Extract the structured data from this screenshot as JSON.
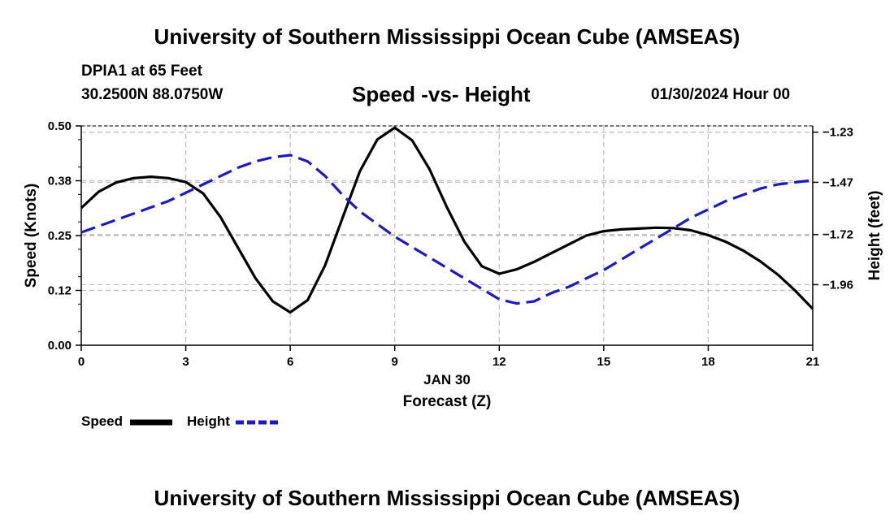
{
  "header": {
    "title": "University of Southern Mississippi Ocean Cube (AMSEAS)",
    "station": "DPIA1 at 65 Feet",
    "coordinates": "30.2500N  88.0750W",
    "subtitle": "Speed -vs- Height",
    "datetime": "01/30/2024 Hour 00"
  },
  "footer": {
    "title": "University of Southern Mississippi Ocean Cube (AMSEAS)"
  },
  "legend": {
    "speed_label": "Speed",
    "height_label": "Height"
  },
  "colors": {
    "speed": "#000000",
    "height": "#1a1acc",
    "grid": "#bbbbbb"
  },
  "chart_data": {
    "type": "line",
    "title": "Speed -vs- Height",
    "xlabel": "Forecast (Z)",
    "xlabel_date": "JAN 30",
    "ylabel": "Speed (Knots)",
    "y2label": "Height (feet)",
    "xlim": [
      0,
      21
    ],
    "ylim": [
      0,
      0.5
    ],
    "y2lim": [
      -2.25,
      -1.2
    ],
    "x_ticks": [
      0,
      3,
      6,
      9,
      12,
      15,
      18,
      21
    ],
    "x_tick_labels": [
      "0",
      "3",
      "6",
      "9",
      "12",
      "15",
      "18",
      "21"
    ],
    "y_ticks": [
      0,
      0.125,
      0.25,
      0.375,
      0.5
    ],
    "y_tick_labels": [
      "0.00",
      "0.12",
      "0.25",
      "0.38",
      "0.50"
    ],
    "y2_ticks": [
      -1.23,
      -1.47,
      -1.72,
      -1.96
    ],
    "y2_tick_labels": [
      "-1.23",
      "-1.47",
      "-1.72",
      "-1.96"
    ],
    "grid": true,
    "series": [
      {
        "name": "Speed",
        "axis": "left",
        "style": "solid",
        "x": [
          0,
          0.5,
          1,
          1.5,
          2,
          2.5,
          3,
          3.5,
          4,
          4.5,
          5,
          5.5,
          6,
          6.5,
          7,
          7.5,
          8,
          8.5,
          9,
          9.5,
          10,
          10.5,
          11,
          11.5,
          12,
          12.5,
          13,
          13.5,
          14,
          14.5,
          15,
          15.5,
          16,
          16.5,
          17,
          17.5,
          18,
          18.5,
          19,
          19.5,
          20,
          20.5,
          21
        ],
        "values": [
          0.313,
          0.35,
          0.371,
          0.381,
          0.384,
          0.381,
          0.372,
          0.346,
          0.292,
          0.222,
          0.153,
          0.1,
          0.075,
          0.103,
          0.182,
          0.29,
          0.397,
          0.469,
          0.496,
          0.467,
          0.401,
          0.314,
          0.236,
          0.18,
          0.163,
          0.173,
          0.19,
          0.21,
          0.23,
          0.25,
          0.26,
          0.264,
          0.266,
          0.268,
          0.267,
          0.262,
          0.251,
          0.236,
          0.216,
          0.191,
          0.161,
          0.124,
          0.083
        ]
      },
      {
        "name": "Height",
        "axis": "right",
        "style": "dashed",
        "x": [
          0,
          0.5,
          1,
          1.5,
          2,
          2.5,
          3,
          3.5,
          4,
          4.5,
          5,
          5.5,
          6,
          6.5,
          7,
          7.5,
          8,
          8.5,
          9,
          9.5,
          10,
          10.5,
          11,
          11.5,
          12,
          12.5,
          13,
          13.5,
          14,
          14.5,
          15,
          15.5,
          16,
          16.5,
          17,
          17.5,
          18,
          18.5,
          19,
          19.5,
          20,
          20.5,
          21
        ],
        "values": [
          -1.71,
          -1.68,
          -1.65,
          -1.62,
          -1.59,
          -1.56,
          -1.52,
          -1.48,
          -1.44,
          -1.4,
          -1.37,
          -1.35,
          -1.34,
          -1.37,
          -1.44,
          -1.53,
          -1.61,
          -1.67,
          -1.73,
          -1.78,
          -1.83,
          -1.88,
          -1.93,
          -1.98,
          -2.03,
          -2.05,
          -2.04,
          -2.0,
          -1.97,
          -1.93,
          -1.89,
          -1.84,
          -1.79,
          -1.74,
          -1.69,
          -1.64,
          -1.6,
          -1.56,
          -1.53,
          -1.5,
          -1.48,
          -1.47,
          -1.46
        ]
      }
    ]
  }
}
